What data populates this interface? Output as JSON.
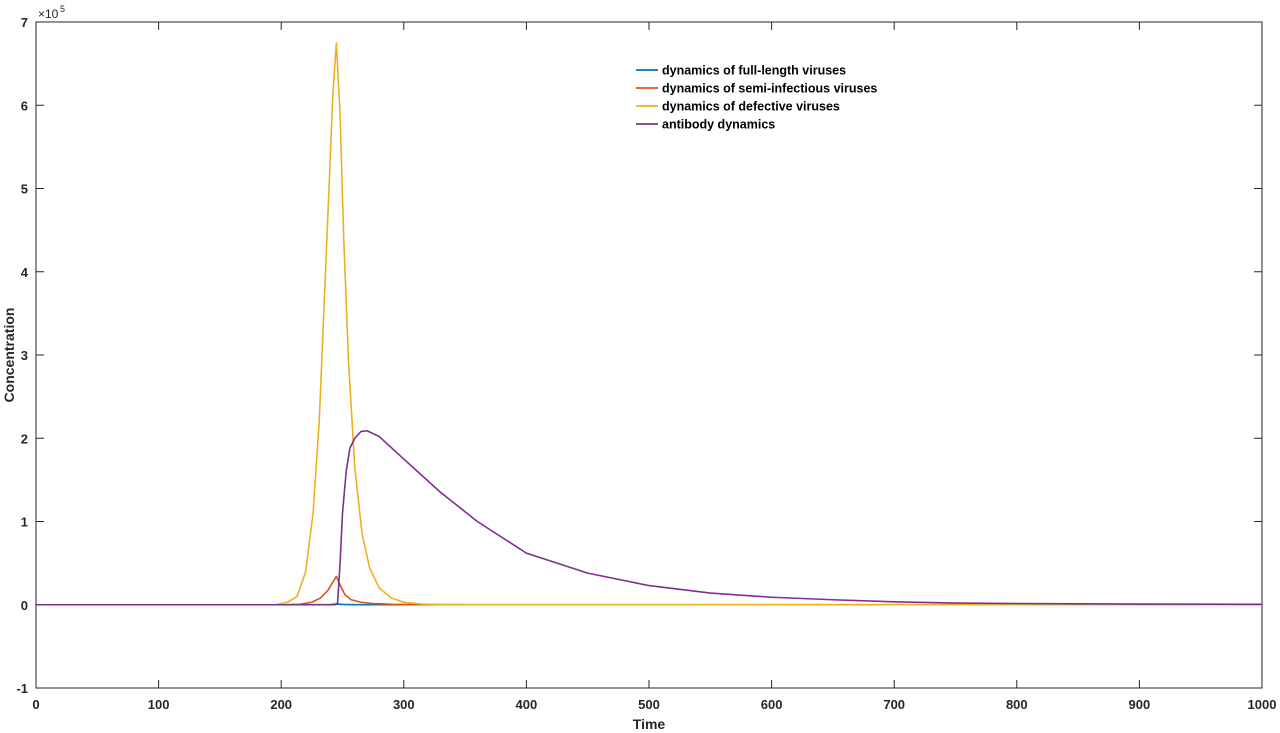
{
  "chart_data": {
    "type": "line",
    "title": "",
    "xlabel": "Time",
    "ylabel": "Concentration",
    "xlim": [
      0,
      1000
    ],
    "ylim": [
      -100000,
      700000
    ],
    "xticks": [
      0,
      100,
      200,
      300,
      400,
      500,
      600,
      700,
      800,
      900,
      1000
    ],
    "yticks": [
      -1,
      0,
      1,
      2,
      3,
      4,
      5,
      6,
      7
    ],
    "y_exponent_base": "×10",
    "y_exponent_power": "5",
    "grid": false,
    "legend_position": "top-center",
    "series": [
      {
        "name": "dynamics of full-length viruses",
        "color": "#0072BD",
        "x": [
          0,
          200,
          230,
          240,
          245,
          250,
          260,
          300,
          400,
          1000
        ],
        "y": [
          0,
          0,
          50,
          300,
          800,
          400,
          100,
          0,
          0,
          0
        ]
      },
      {
        "name": "dynamics of semi-infectious viruses",
        "color": "#D95319",
        "x": [
          0,
          200,
          215,
          225,
          232,
          238,
          242,
          245,
          248,
          252,
          257,
          265,
          275,
          290,
          320,
          1000
        ],
        "y": [
          0,
          0,
          500,
          3000,
          8000,
          17000,
          27000,
          34000,
          24000,
          12000,
          6000,
          3000,
          1500,
          600,
          100,
          0
        ]
      },
      {
        "name": "dynamics of defective viruses",
        "color": "#EDB120",
        "x": [
          0,
          195,
          205,
          213,
          220,
          226,
          231,
          235,
          239,
          242,
          245,
          248,
          251,
          255,
          260,
          266,
          272,
          280,
          290,
          300,
          315,
          330,
          350,
          1000
        ],
        "y": [
          0,
          0,
          3000,
          10000,
          40000,
          110000,
          220000,
          360000,
          500000,
          610000,
          675000,
          590000,
          440000,
          290000,
          165000,
          85000,
          45000,
          20000,
          8000,
          3000,
          800,
          200,
          0,
          0
        ]
      },
      {
        "name": "antibody dynamics",
        "color": "#7E2F8E",
        "x": [
          0,
          240,
          244,
          246,
          248,
          250,
          253,
          256,
          260,
          265,
          270,
          280,
          300,
          330,
          360,
          400,
          450,
          500,
          550,
          600,
          650,
          700,
          750,
          800,
          900,
          1000
        ],
        "y": [
          0,
          0,
          0,
          2000,
          50000,
          110000,
          160000,
          188000,
          200000,
          208000,
          209000,
          202000,
          175000,
          135000,
          100000,
          62000,
          38000,
          23000,
          14000,
          9000,
          6000,
          3500,
          2000,
          1500,
          800,
          500
        ]
      }
    ]
  }
}
